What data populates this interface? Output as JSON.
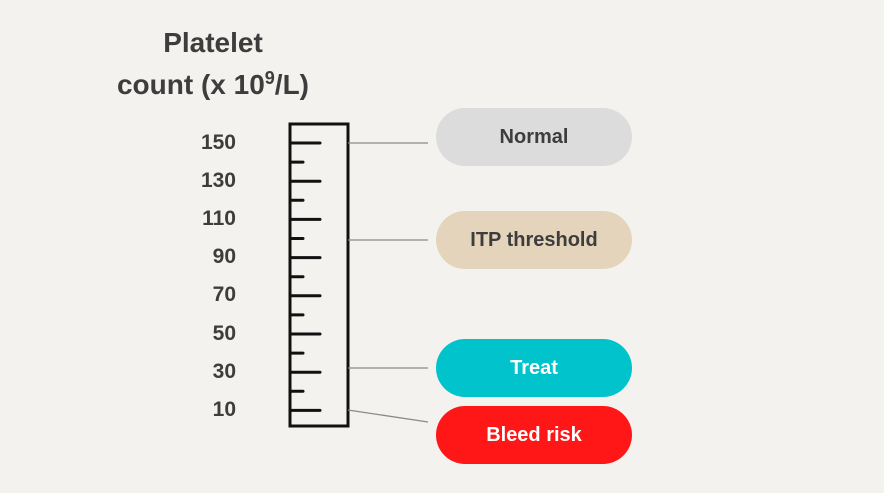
{
  "title": {
    "line1": "Platelet",
    "line2_prefix": "count (x 10",
    "exponent": "9",
    "line2_suffix": "/L)"
  },
  "scale": {
    "tick_labels": [
      "150",
      "130",
      "110",
      "90",
      "70",
      "50",
      "30",
      "10"
    ]
  },
  "zones": [
    {
      "label": "Normal",
      "color": "#dcdcdc",
      "text_color": "#3d3d3d",
      "value": 150
    },
    {
      "label": "ITP threshold",
      "color": "#e4d4bb",
      "text_color": "#3d3d3d",
      "value": 100
    },
    {
      "label": "Treat",
      "color": "#00c3cb",
      "text_color": "#ffffff",
      "value": 30
    },
    {
      "label": "Bleed risk",
      "color": "#ff1717",
      "text_color": "#ffffff",
      "value": 10
    }
  ]
}
